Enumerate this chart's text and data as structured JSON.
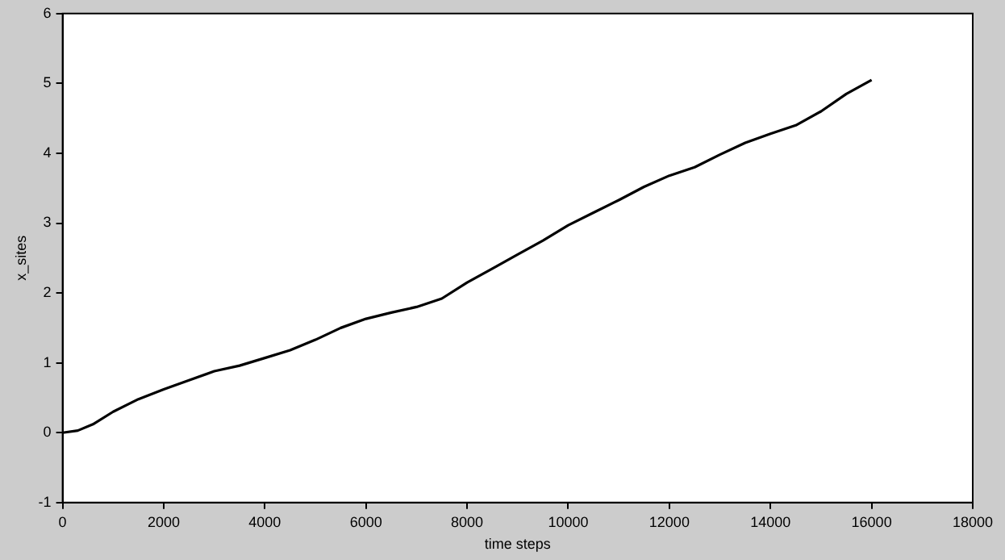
{
  "chart_data": {
    "type": "line",
    "xlabel": "time steps",
    "ylabel": "x_sites",
    "xlim": [
      0,
      18000
    ],
    "xticks": [
      0,
      2000,
      4000,
      6000,
      8000,
      10000,
      12000,
      14000,
      16000,
      18000
    ],
    "ylim": [
      -1,
      6
    ],
    "yticks": [
      -1,
      0,
      1,
      2,
      3,
      4,
      5,
      6
    ],
    "grid": false,
    "legend": false,
    "marker": "none",
    "line_style": "solid",
    "x": [
      0,
      300,
      600,
      1000,
      1500,
      2000,
      2500,
      3000,
      3500,
      4000,
      4500,
      5000,
      5500,
      6000,
      6500,
      7000,
      7500,
      8000,
      8500,
      9000,
      9500,
      10000,
      10500,
      11000,
      11500,
      12000,
      12500,
      13000,
      13500,
      14000,
      14500,
      15000,
      15500,
      16000
    ],
    "series": [
      {
        "color": "#000000",
        "values": [
          0,
          0.03,
          0.12,
          0.3,
          0.48,
          0.62,
          0.75,
          0.88,
          0.96,
          1.07,
          1.18,
          1.33,
          1.5,
          1.63,
          1.72,
          1.8,
          1.92,
          2.15,
          2.35,
          2.55,
          2.75,
          2.97,
          3.15,
          3.33,
          3.52,
          3.68,
          3.8,
          3.98,
          4.15,
          4.28,
          4.4,
          4.6,
          4.85,
          5.05
        ]
      }
    ]
  }
}
